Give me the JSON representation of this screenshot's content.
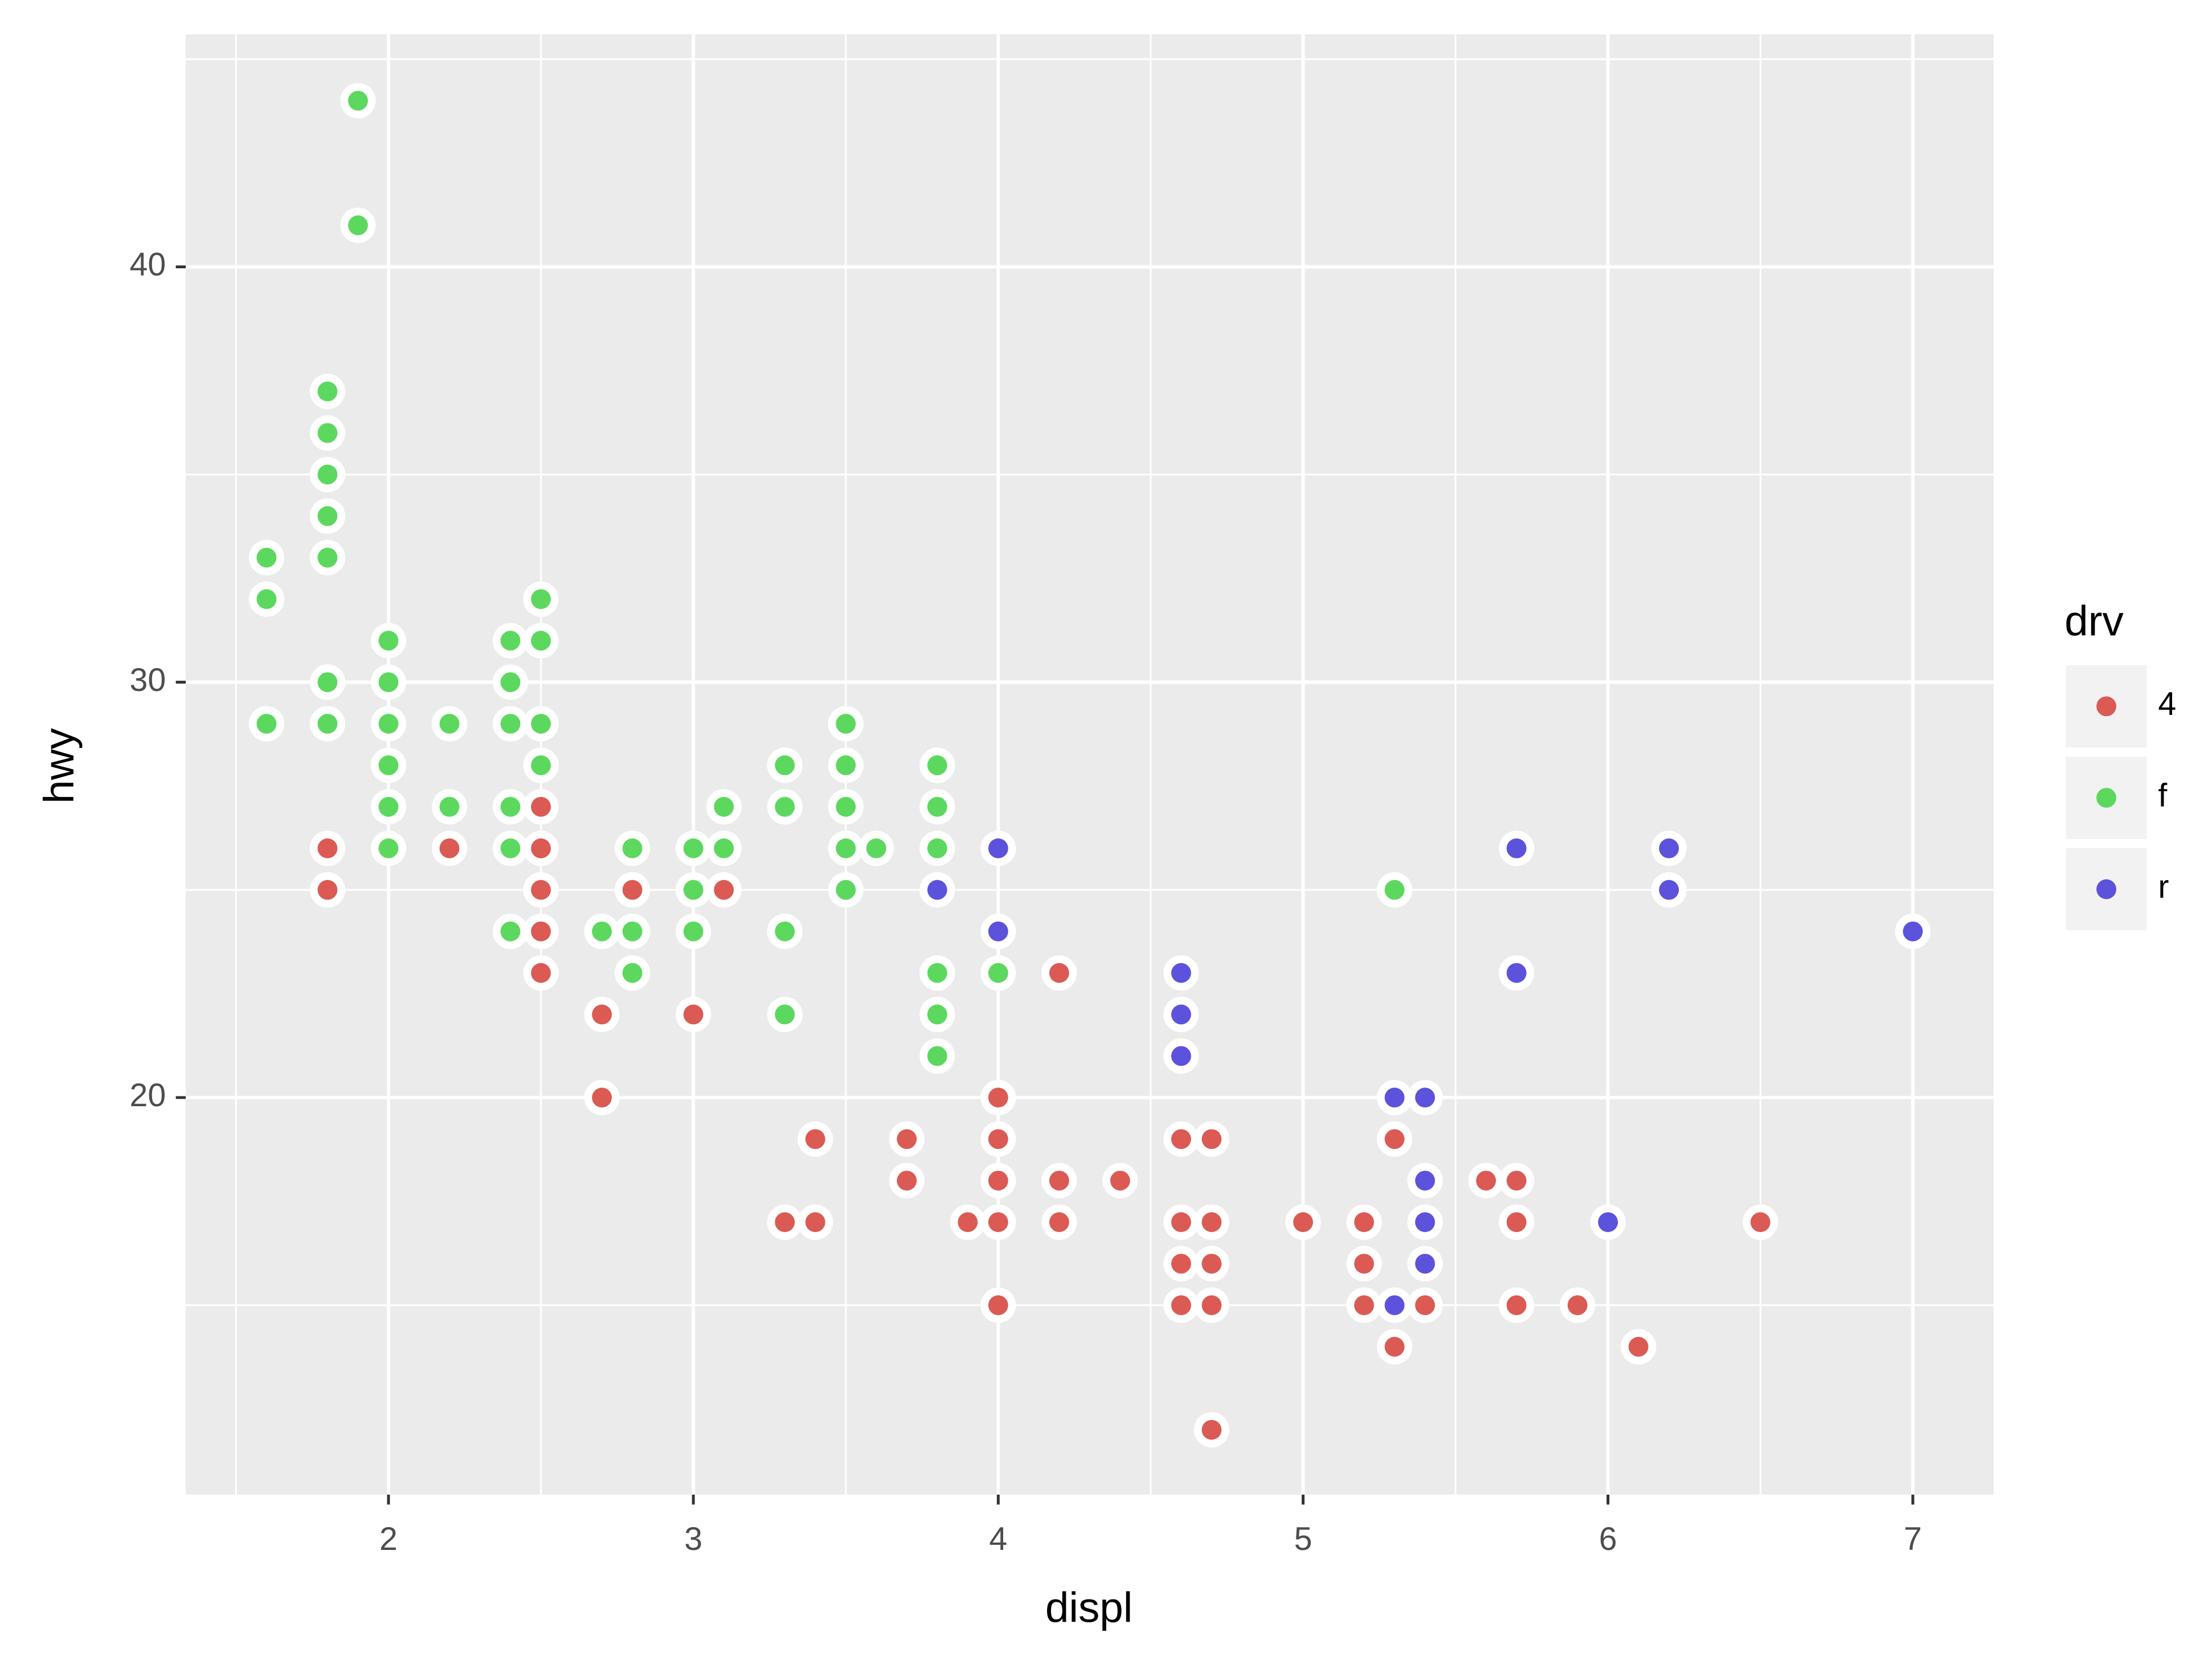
{
  "chart_data": {
    "type": "scatter",
    "x_label": "displ",
    "y_label": "hwy",
    "xlim": [
      1.335,
      7.265
    ],
    "ylim": [
      10.44,
      45.6
    ],
    "xticks": [
      2,
      3,
      4,
      5,
      6,
      7
    ],
    "yticks": [
      20,
      30,
      40
    ],
    "minor_xticks": [
      1.5,
      2.5,
      3.5,
      4.5,
      5.5,
      6.5
    ],
    "minor_yticks": [
      15,
      25,
      35,
      45
    ],
    "grid": true,
    "legend_title": "drv",
    "legend_position": "right",
    "series": [
      {
        "name": "4",
        "color": "#db5a54",
        "x": [
          1.8,
          1.8,
          2.2,
          2.5,
          2.5,
          2.5,
          2.5,
          2.5,
          2.7,
          2.7,
          2.8,
          3.0,
          3.1,
          3.3,
          3.4,
          3.4,
          3.7,
          3.7,
          3.9,
          4.0,
          4.0,
          4.0,
          4.0,
          4.0,
          4.2,
          4.2,
          4.2,
          4.4,
          4.6,
          4.6,
          4.6,
          4.6,
          4.7,
          4.7,
          4.7,
          4.7,
          4.7,
          5.0,
          5.2,
          5.2,
          5.2,
          5.3,
          5.3,
          5.4,
          5.6,
          5.7,
          5.7,
          5.7,
          5.9,
          6.1,
          6.5
        ],
        "values": [
          26,
          25,
          26,
          27,
          26,
          25,
          24,
          23,
          22,
          20,
          25,
          22,
          25,
          17,
          19,
          17,
          19,
          18,
          17,
          20,
          19,
          18,
          17,
          15,
          23,
          18,
          17,
          18,
          19,
          17,
          16,
          15,
          19,
          17,
          16,
          15,
          12,
          17,
          17,
          16,
          15,
          19,
          14,
          15,
          18,
          18,
          17,
          15,
          15,
          14,
          17
        ]
      },
      {
        "name": "f",
        "color": "#5cd85e",
        "x": [
          1.6,
          1.6,
          1.6,
          1.8,
          1.8,
          1.8,
          1.8,
          1.8,
          1.8,
          1.8,
          1.9,
          1.9,
          2.0,
          2.0,
          2.0,
          2.0,
          2.0,
          2.0,
          2.2,
          2.2,
          2.4,
          2.4,
          2.4,
          2.4,
          2.4,
          2.4,
          2.5,
          2.5,
          2.5,
          2.5,
          2.7,
          2.8,
          2.8,
          2.8,
          3.0,
          3.0,
          3.0,
          3.1,
          3.1,
          3.3,
          3.3,
          3.3,
          3.3,
          3.5,
          3.5,
          3.5,
          3.5,
          3.5,
          3.6,
          3.8,
          3.8,
          3.8,
          3.8,
          3.8,
          3.8,
          4.0,
          5.3
        ],
        "values": [
          33,
          32,
          29,
          37,
          36,
          35,
          34,
          33,
          30,
          29,
          44,
          41,
          31,
          30,
          29,
          28,
          27,
          26,
          29,
          27,
          31,
          30,
          29,
          27,
          26,
          24,
          32,
          31,
          29,
          28,
          24,
          26,
          24,
          23,
          26,
          25,
          24,
          27,
          26,
          28,
          27,
          24,
          22,
          29,
          28,
          27,
          26,
          25,
          26,
          28,
          27,
          26,
          23,
          22,
          21,
          23,
          25
        ]
      },
      {
        "name": "r",
        "color": "#5c52dc",
        "x": [
          3.8,
          4.0,
          4.0,
          4.6,
          4.6,
          4.6,
          5.3,
          5.3,
          5.4,
          5.4,
          5.4,
          5.4,
          5.7,
          5.7,
          6.0,
          6.2,
          6.2,
          7.0
        ],
        "values": [
          25,
          26,
          24,
          23,
          22,
          21,
          20,
          15,
          20,
          18,
          17,
          16,
          26,
          23,
          17,
          26,
          25,
          24
        ]
      }
    ]
  }
}
